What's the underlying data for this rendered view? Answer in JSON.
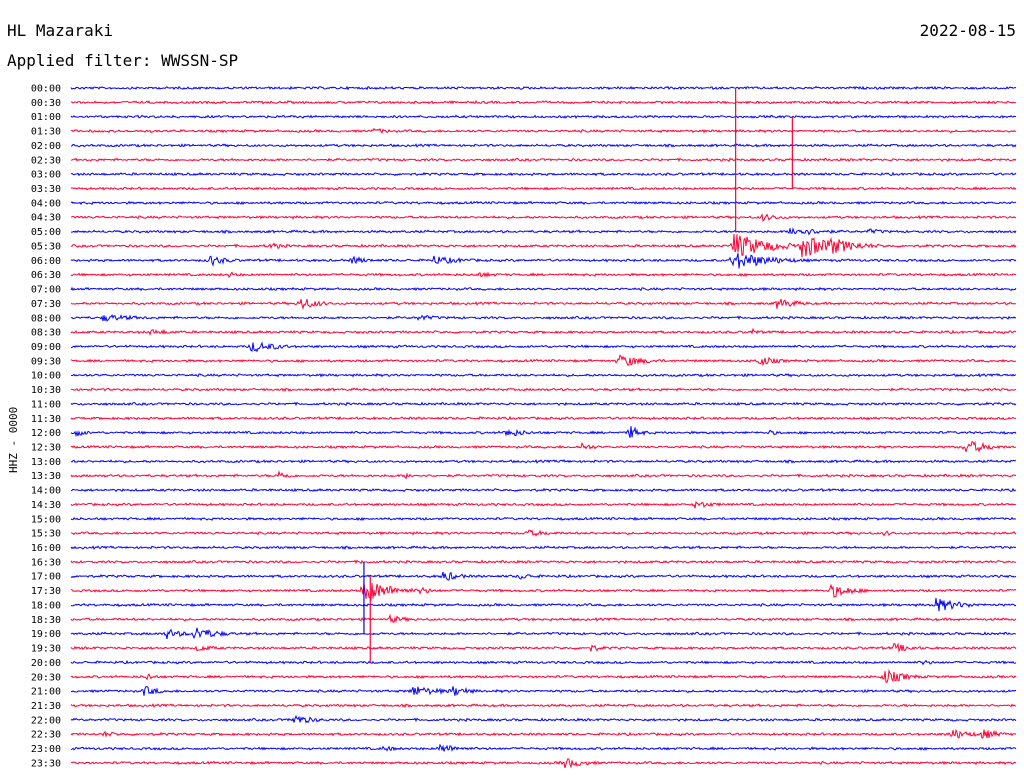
{
  "header": {
    "station": "HL Mazaraki",
    "date": "2022-08-15",
    "filter": "Applied filter: WWSSN-SP"
  },
  "chart_data": {
    "type": "helicorder",
    "ylabel": "HHZ - 0000",
    "colors": [
      "#0000ff",
      "#ff0033"
    ],
    "rows": [
      "00:00",
      "00:30",
      "01:00",
      "01:30",
      "02:00",
      "02:30",
      "03:00",
      "03:30",
      "04:00",
      "04:30",
      "05:00",
      "05:30",
      "06:00",
      "06:30",
      "07:00",
      "07:30",
      "08:00",
      "08:30",
      "09:00",
      "09:30",
      "10:00",
      "10:30",
      "11:00",
      "11:30",
      "12:00",
      "12:30",
      "13:00",
      "13:30",
      "14:00",
      "14:30",
      "15:00",
      "15:30",
      "16:00",
      "16:30",
      "17:00",
      "17:30",
      "18:00",
      "18:30",
      "19:00",
      "19:30",
      "20:00",
      "20:30",
      "21:00",
      "21:30",
      "22:00",
      "22:30",
      "23:00",
      "23:30"
    ],
    "x_minutes": [
      0,
      30
    ],
    "events": [
      {
        "row": 3,
        "t": 9.6,
        "amp": 3,
        "dur": 1.5
      },
      {
        "row": 9,
        "t": 21.9,
        "amp": 4,
        "dur": 1.5
      },
      {
        "row": 10,
        "t": 22.8,
        "amp": 5,
        "dur": 2.5
      },
      {
        "row": 10,
        "t": 25.3,
        "amp": 3,
        "dur": 1.5
      },
      {
        "row": 11,
        "t": 6.3,
        "amp": 4,
        "dur": 1.2
      },
      {
        "row": 11,
        "t": 21.0,
        "amp": 14,
        "dur": 2.5
      },
      {
        "row": 11,
        "t": 23.2,
        "amp": 14,
        "dur": 1.8
      },
      {
        "row": 11,
        "t": 24.0,
        "amp": 10,
        "dur": 2.0
      },
      {
        "row": 12,
        "t": 4.4,
        "amp": 6,
        "dur": 1.2
      },
      {
        "row": 12,
        "t": 8.9,
        "amp": 5,
        "dur": 1.0
      },
      {
        "row": 12,
        "t": 11.5,
        "amp": 5,
        "dur": 2.0
      },
      {
        "row": 12,
        "t": 21.0,
        "amp": 10,
        "dur": 2.5
      },
      {
        "row": 13,
        "t": 5.0,
        "amp": 3,
        "dur": 1.0
      },
      {
        "row": 13,
        "t": 12.8,
        "amp": 3,
        "dur": 2.0
      },
      {
        "row": 15,
        "t": 7.3,
        "amp": 7,
        "dur": 1.2
      },
      {
        "row": 15,
        "t": 22.4,
        "amp": 6,
        "dur": 1.5
      },
      {
        "row": 16,
        "t": 1.0,
        "amp": 4,
        "dur": 2.5
      },
      {
        "row": 16,
        "t": 11.0,
        "amp": 3,
        "dur": 2.0
      },
      {
        "row": 17,
        "t": 2.5,
        "amp": 3,
        "dur": 2.0
      },
      {
        "row": 17,
        "t": 21.6,
        "amp": 4,
        "dur": 0.6
      },
      {
        "row": 18,
        "t": 5.7,
        "amp": 6,
        "dur": 2.0
      },
      {
        "row": 19,
        "t": 17.4,
        "amp": 7,
        "dur": 1.8
      },
      {
        "row": 19,
        "t": 21.8,
        "amp": 6,
        "dur": 1.2
      },
      {
        "row": 24,
        "t": 0.1,
        "amp": 5,
        "dur": 0.8
      },
      {
        "row": 24,
        "t": 13.8,
        "amp": 5,
        "dur": 1.5
      },
      {
        "row": 24,
        "t": 17.7,
        "amp": 8,
        "dur": 0.8
      },
      {
        "row": 24,
        "t": 22.1,
        "amp": 3,
        "dur": 1.0
      },
      {
        "row": 25,
        "t": 16.2,
        "amp": 5,
        "dur": 0.8
      },
      {
        "row": 25,
        "t": 28.4,
        "amp": 8,
        "dur": 1.5
      },
      {
        "row": 26,
        "t": 15.5,
        "amp": 2,
        "dur": 1.0
      },
      {
        "row": 27,
        "t": 6.6,
        "amp": 5,
        "dur": 0.8
      },
      {
        "row": 27,
        "t": 10.6,
        "amp": 3,
        "dur": 0.8
      },
      {
        "row": 29,
        "t": 19.8,
        "amp": 4,
        "dur": 1.5
      },
      {
        "row": 31,
        "t": 14.4,
        "amp": 4,
        "dur": 1.8
      },
      {
        "row": 31,
        "t": 25.8,
        "amp": 3,
        "dur": 0.8
      },
      {
        "row": 33,
        "t": 9.2,
        "amp": 2,
        "dur": 0.8
      },
      {
        "row": 34,
        "t": 11.8,
        "amp": 6,
        "dur": 1.2
      },
      {
        "row": 34,
        "t": 14.2,
        "amp": 4,
        "dur": 1.2
      },
      {
        "row": 35,
        "t": 9.3,
        "amp": 13,
        "dur": 1.8
      },
      {
        "row": 35,
        "t": 11.0,
        "amp": 5,
        "dur": 1.0
      },
      {
        "row": 35,
        "t": 24.1,
        "amp": 8,
        "dur": 1.5
      },
      {
        "row": 36,
        "t": 27.4,
        "amp": 8,
        "dur": 1.8
      },
      {
        "row": 37,
        "t": 10.1,
        "amp": 4,
        "dur": 1.5
      },
      {
        "row": 38,
        "t": 3.0,
        "amp": 6,
        "dur": 1.2
      },
      {
        "row": 38,
        "t": 3.9,
        "amp": 8,
        "dur": 1.5
      },
      {
        "row": 39,
        "t": 4.0,
        "amp": 4,
        "dur": 1.2
      },
      {
        "row": 39,
        "t": 16.5,
        "amp": 4,
        "dur": 1.0
      },
      {
        "row": 39,
        "t": 26.1,
        "amp": 5,
        "dur": 1.5
      },
      {
        "row": 40,
        "t": 27.0,
        "amp": 3,
        "dur": 1.0
      },
      {
        "row": 41,
        "t": 2.4,
        "amp": 5,
        "dur": 0.5
      },
      {
        "row": 41,
        "t": 25.8,
        "amp": 8,
        "dur": 1.5
      },
      {
        "row": 42,
        "t": 2.3,
        "amp": 6,
        "dur": 1.0
      },
      {
        "row": 42,
        "t": 10.8,
        "amp": 6,
        "dur": 2.0
      },
      {
        "row": 42,
        "t": 12.1,
        "amp": 6,
        "dur": 1.2
      },
      {
        "row": 44,
        "t": 7.0,
        "amp": 6,
        "dur": 1.5
      },
      {
        "row": 45,
        "t": 1.0,
        "amp": 3,
        "dur": 1.5
      },
      {
        "row": 45,
        "t": 27.9,
        "amp": 6,
        "dur": 1.5
      },
      {
        "row": 45,
        "t": 28.9,
        "amp": 6,
        "dur": 1.2
      },
      {
        "row": 46,
        "t": 9.9,
        "amp": 3,
        "dur": 1.2
      },
      {
        "row": 46,
        "t": 11.7,
        "amp": 5,
        "dur": 1.5
      },
      {
        "row": 47,
        "t": 15.6,
        "amp": 6,
        "dur": 1.5
      }
    ],
    "spikes": [
      {
        "row": 2,
        "t": 21.1,
        "len": 8
      },
      {
        "row": 2,
        "t": 22.9,
        "len": 5
      },
      {
        "row": 0,
        "t": 21.1,
        "len": 2
      },
      {
        "row": 33,
        "t": 9.3,
        "len": 5
      },
      {
        "row": 34,
        "t": 9.5,
        "len": 6
      }
    ]
  }
}
